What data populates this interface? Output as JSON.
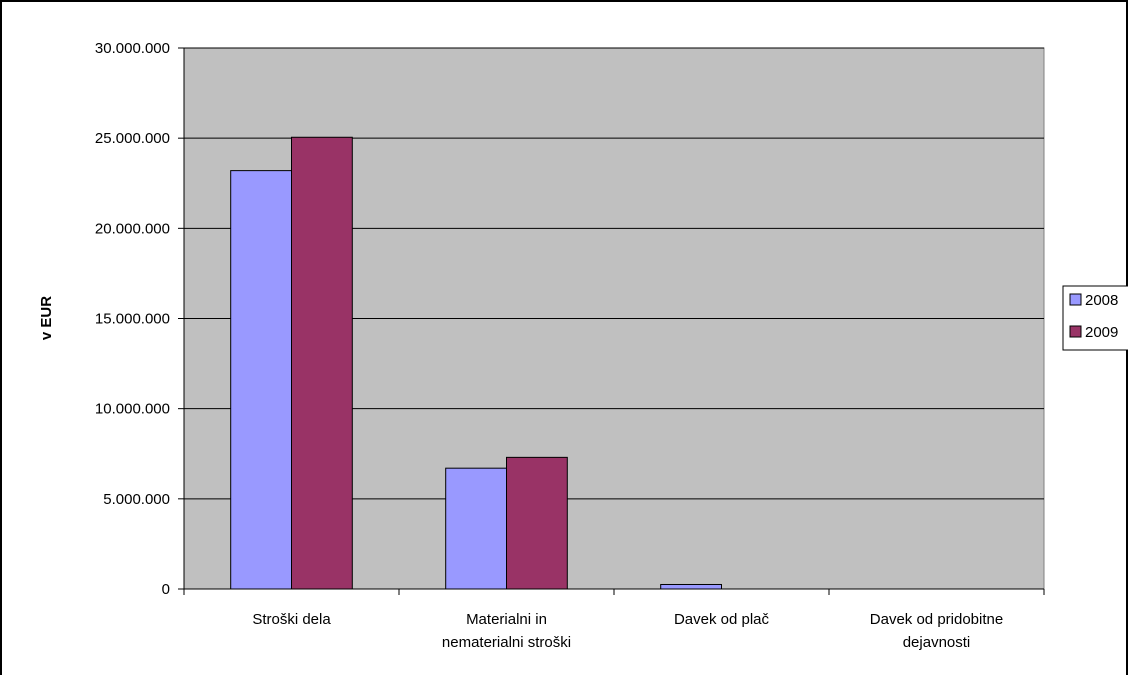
{
  "chart_data": {
    "type": "bar",
    "title": "",
    "xlabel": "",
    "ylabel": "v EUR",
    "ylim": [
      0,
      30000000
    ],
    "yticks": [
      0,
      5000000,
      10000000,
      15000000,
      20000000,
      25000000,
      30000000
    ],
    "ytick_labels": [
      "0",
      "5.000.000",
      "10.000.000",
      "15.000.000",
      "20.000.000",
      "25.000.000",
      "30.000.000"
    ],
    "categories": [
      [
        "Stroški dela"
      ],
      [
        "Materialni in",
        "nematerialni stroški"
      ],
      [
        "Davek od plač"
      ],
      [
        "Davek od pridobitne",
        "dejavnosti"
      ]
    ],
    "series": [
      {
        "name": "2008",
        "color": "#9999ff",
        "values": [
          23200000,
          6700000,
          250000,
          0
        ]
      },
      {
        "name": "2009",
        "color": "#993366",
        "values": [
          25050000,
          7300000,
          0,
          0
        ]
      }
    ],
    "grid": true,
    "plot_background": "#c0c0c0",
    "legend_position": "right"
  }
}
